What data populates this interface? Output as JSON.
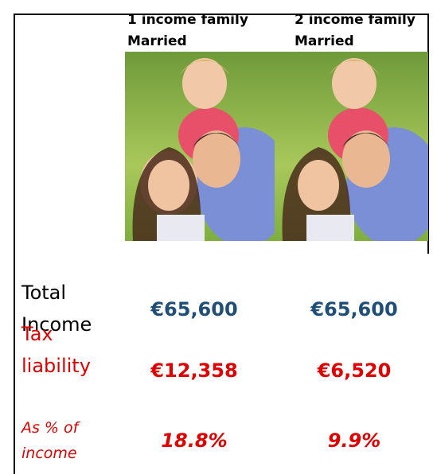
{
  "columns": [
    {
      "title": "1 income family",
      "subtitle": "Married"
    },
    {
      "title": "2 income family",
      "subtitle": "Married"
    }
  ],
  "rows": [
    {
      "label": "Total Income",
      "values": [
        "€65,600",
        "€65,600"
      ]
    },
    {
      "label": "Tax liability",
      "values": [
        "€12,358",
        "€6,520"
      ]
    },
    {
      "label": "As % of income",
      "values": [
        "18.8%",
        "9.9%"
      ]
    }
  ]
}
